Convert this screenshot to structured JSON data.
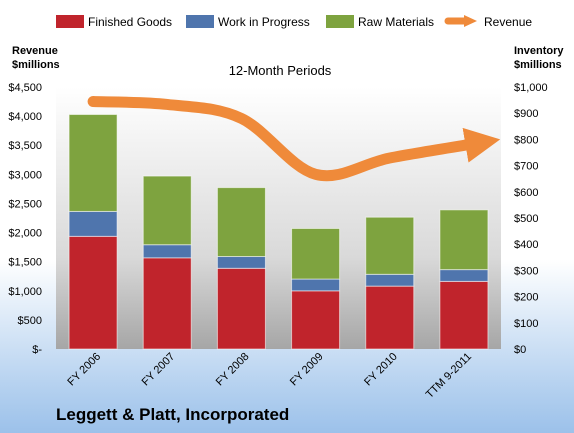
{
  "chart_data": {
    "type": "bar",
    "stacked": true,
    "subtitle": "12-Month Periods",
    "company": "Leggett & Platt, Incorporated",
    "left_axis": {
      "title_line1": "Revenue",
      "title_line2": "$millions",
      "range": [
        0,
        4500
      ],
      "step": 500,
      "ticks": [
        "$-",
        "$500",
        "$1,000",
        "$1,500",
        "$2,000",
        "$2,500",
        "$3,000",
        "$3,500",
        "$4,000",
        "$4,500"
      ]
    },
    "right_axis": {
      "title_line1": "Inventory",
      "title_line2": "$millions",
      "range": [
        0,
        1000
      ],
      "step": 100,
      "ticks": [
        "$0",
        "$100",
        "$200",
        "$300",
        "$400",
        "$500",
        "$600",
        "$700",
        "$800",
        "$900",
        "$1,000"
      ]
    },
    "categories": [
      "FY 2006",
      "FY 2007",
      "FY 2008",
      "FY 2009",
      "FY 2010",
      "TTM 9-2011"
    ],
    "series": [
      {
        "name": "Finished Goods",
        "axis": "right",
        "color": "#c0242c",
        "values": [
          430,
          348,
          308,
          222,
          240,
          258
        ]
      },
      {
        "name": "Work in Progress",
        "axis": "right",
        "color": "#4f75ad",
        "values": [
          95,
          50,
          45,
          45,
          45,
          45
        ]
      },
      {
        "name": "Raw Materials",
        "axis": "right",
        "color": "#7ea33f",
        "values": [
          370,
          262,
          263,
          193,
          218,
          228
        ]
      },
      {
        "name": "Revenue",
        "axis": "left",
        "type": "line",
        "color": "#ef8a3a",
        "values": [
          4250,
          4200,
          3960,
          3000,
          3280,
          3530
        ]
      }
    ],
    "legend_position": "top",
    "grid": false
  }
}
